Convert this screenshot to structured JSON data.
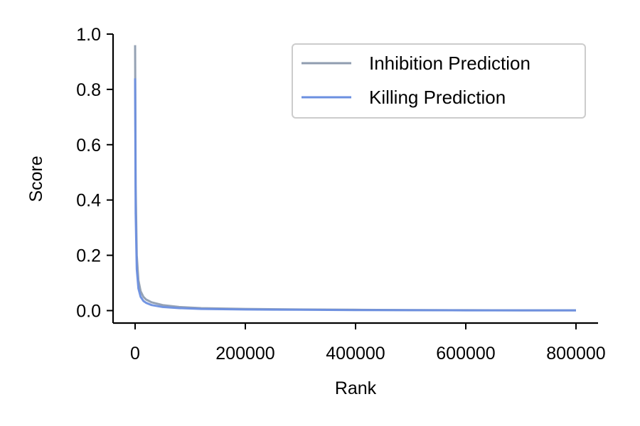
{
  "chart_data": {
    "type": "line",
    "title": "",
    "xlabel": "Rank",
    "ylabel": "Score",
    "xlim": [
      -40000,
      840000
    ],
    "ylim": [
      -0.045,
      1.0
    ],
    "xticks": [
      0,
      200000,
      400000,
      600000,
      800000
    ],
    "xtick_labels": [
      "0",
      "200000",
      "400000",
      "600000",
      "800000"
    ],
    "yticks": [
      0.0,
      0.2,
      0.4,
      0.6,
      0.8,
      1.0
    ],
    "ytick_labels": [
      "0.0",
      "0.2",
      "0.4",
      "0.6",
      "0.8",
      "1.0"
    ],
    "grid": false,
    "legend_position": "top-right",
    "series": [
      {
        "name": "Inhibition Prediction",
        "color": "#8f9db0",
        "x": [
          0,
          1000,
          3000,
          6000,
          10000,
          15000,
          20000,
          30000,
          50000,
          80000,
          120000,
          200000,
          300000,
          400000,
          500000,
          600000,
          700000,
          800000
        ],
        "y": [
          0.96,
          0.45,
          0.2,
          0.11,
          0.07,
          0.05,
          0.04,
          0.03,
          0.02,
          0.013,
          0.009,
          0.006,
          0.004,
          0.003,
          0.002,
          0.0015,
          0.001,
          0.001
        ]
      },
      {
        "name": "Killing Prediction",
        "color": "#6b8fe0",
        "x": [
          0,
          1000,
          3000,
          6000,
          10000,
          15000,
          20000,
          30000,
          50000,
          80000,
          120000,
          200000,
          300000,
          400000,
          500000,
          600000,
          700000,
          800000
        ],
        "y": [
          0.84,
          0.35,
          0.15,
          0.08,
          0.05,
          0.035,
          0.028,
          0.02,
          0.013,
          0.009,
          0.006,
          0.004,
          0.003,
          0.002,
          0.0015,
          0.001,
          0.001,
          0.001
        ]
      }
    ]
  }
}
